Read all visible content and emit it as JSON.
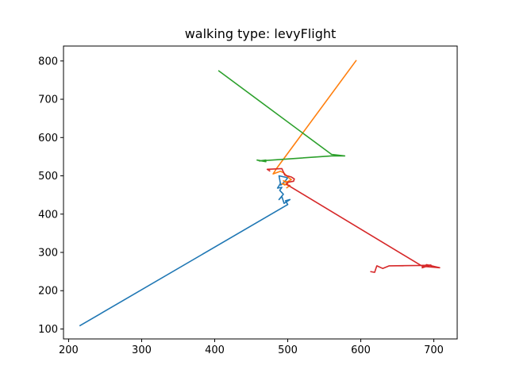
{
  "chart_data": {
    "type": "line",
    "title": "walking type: levyFlight",
    "xlabel": "",
    "ylabel": "",
    "xlim": [
      193,
      732
    ],
    "ylim": [
      74,
      839
    ],
    "xticks": [
      200,
      300,
      400,
      500,
      600,
      700
    ],
    "yticks": [
      100,
      200,
      300,
      400,
      500,
      600,
      700,
      800
    ],
    "grid": false,
    "legend": "none",
    "series": [
      {
        "color": "#1f77b4",
        "points": [
          [
            215,
            108
          ],
          [
            500,
            425
          ],
          [
            497,
            435
          ],
          [
            503,
            438
          ],
          [
            495,
            428
          ],
          [
            492,
            446
          ],
          [
            488,
            438
          ],
          [
            494,
            452
          ],
          [
            489,
            462
          ],
          [
            492,
            470
          ],
          [
            486,
            468
          ],
          [
            490,
            480
          ],
          [
            488,
            500
          ],
          [
            500,
            495
          ],
          [
            496,
            485
          ],
          [
            490,
            475
          ]
        ]
      },
      {
        "color": "#ff7f0e",
        "points": [
          [
            594,
            802
          ],
          [
            485,
            520
          ],
          [
            480,
            505
          ],
          [
            490,
            512
          ],
          [
            495,
            507
          ],
          [
            500,
            497
          ],
          [
            505,
            490
          ],
          [
            499,
            484
          ],
          [
            494,
            487
          ],
          [
            500,
            480
          ],
          [
            496,
            476
          ],
          [
            492,
            480
          ],
          [
            503,
            475
          ],
          [
            498,
            468
          ]
        ]
      },
      {
        "color": "#2ca02c",
        "points": [
          [
            405,
            775
          ],
          [
            560,
            556
          ],
          [
            578,
            552
          ],
          [
            560,
            552
          ],
          [
            478,
            541
          ],
          [
            461,
            539
          ],
          [
            470,
            541
          ],
          [
            470,
            537
          ],
          [
            458,
            541
          ],
          [
            468,
            538
          ]
        ]
      },
      {
        "color": "#d62728",
        "points": [
          [
            476,
            512
          ],
          [
            472,
            517
          ],
          [
            492,
            519
          ],
          [
            496,
            502
          ],
          [
            505,
            497
          ],
          [
            509,
            492
          ],
          [
            508,
            486
          ],
          [
            500,
            483
          ],
          [
            498,
            478
          ],
          [
            685,
            263
          ],
          [
            689,
            263
          ],
          [
            708,
            260
          ],
          [
            690,
            268
          ],
          [
            684,
            260
          ],
          [
            696,
            267
          ],
          [
            682,
            266
          ],
          [
            639,
            265
          ],
          [
            630,
            258
          ],
          [
            622,
            265
          ],
          [
            621,
            260
          ],
          [
            619,
            248
          ],
          [
            613,
            250
          ]
        ]
      }
    ]
  }
}
